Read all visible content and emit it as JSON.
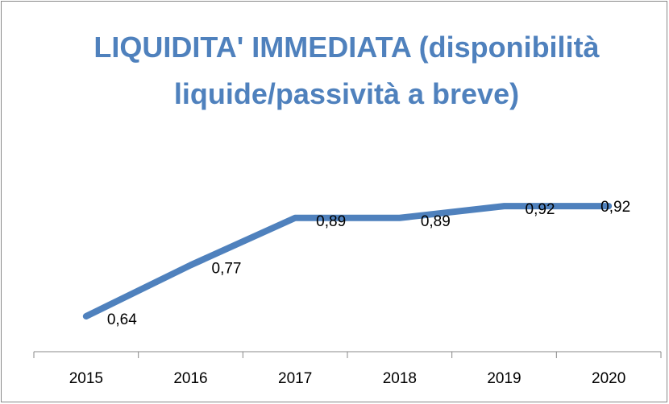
{
  "chart_data": {
    "type": "line",
    "title": "LIQUIDITA' IMMEDIATA (disponibilità liquide/passività a breve)",
    "categories": [
      "2015",
      "2016",
      "2017",
      "2018",
      "2019",
      "2020"
    ],
    "series": [
      {
        "color": "#4f81bd",
        "values": [
          0.64,
          0.77,
          0.89,
          0.89,
          0.92,
          0.92
        ],
        "value_labels": [
          "0,64",
          "0,77",
          "0,89",
          "0,89",
          "0,92",
          "0,92"
        ]
      }
    ],
    "ylim": [
      0.55,
      1.0
    ]
  }
}
